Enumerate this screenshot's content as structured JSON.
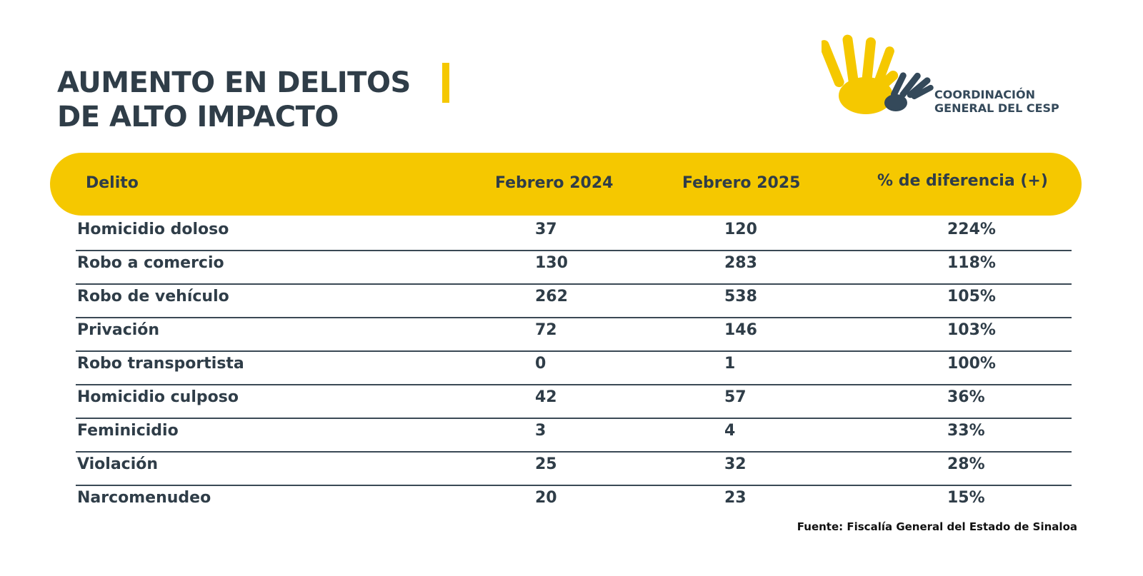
{
  "title": {
    "line1": "AUMENTO EN DELITOS",
    "line2": "DE ALTO IMPACTO"
  },
  "logo": {
    "line1": "COORDINACIÓN",
    "line2": "GENERAL DEL CESP",
    "icon": "hands-icon",
    "colors": {
      "yellow": "#f5c800",
      "slate": "#34495a"
    }
  },
  "colors": {
    "accent": "#f5c800",
    "text": "#2f3d48",
    "rule": "#3a4955"
  },
  "table": {
    "headers": [
      "Delito",
      "Febrero 2024",
      "Febrero 2025",
      "% de diferencia (+)"
    ],
    "rows": [
      {
        "delito": "Homicidio doloso",
        "feb2024": "37",
        "feb2025": "120",
        "diff": "224%"
      },
      {
        "delito": "Robo a comercio",
        "feb2024": "130",
        "feb2025": "283",
        "diff": "118%"
      },
      {
        "delito": "Robo de vehículo",
        "feb2024": "262",
        "feb2025": "538",
        "diff": "105%"
      },
      {
        "delito": "Privación",
        "feb2024": "72",
        "feb2025": "146",
        "diff": "103%"
      },
      {
        "delito": "Robo transportista",
        "feb2024": "0",
        "feb2025": "1",
        "diff": "100%"
      },
      {
        "delito": "Homicidio culposo",
        "feb2024": "42",
        "feb2025": "57",
        "diff": "36%"
      },
      {
        "delito": "Feminicidio",
        "feb2024": "3",
        "feb2025": "4",
        "diff": "33%"
      },
      {
        "delito": "Violación",
        "feb2024": "25",
        "feb2025": "32",
        "diff": "28%"
      },
      {
        "delito": "Narcomenudeo",
        "feb2024": "20",
        "feb2025": "23",
        "diff": "15%"
      }
    ]
  },
  "source": "Fuente: Fiscalía General del Estado de Sinaloa"
}
